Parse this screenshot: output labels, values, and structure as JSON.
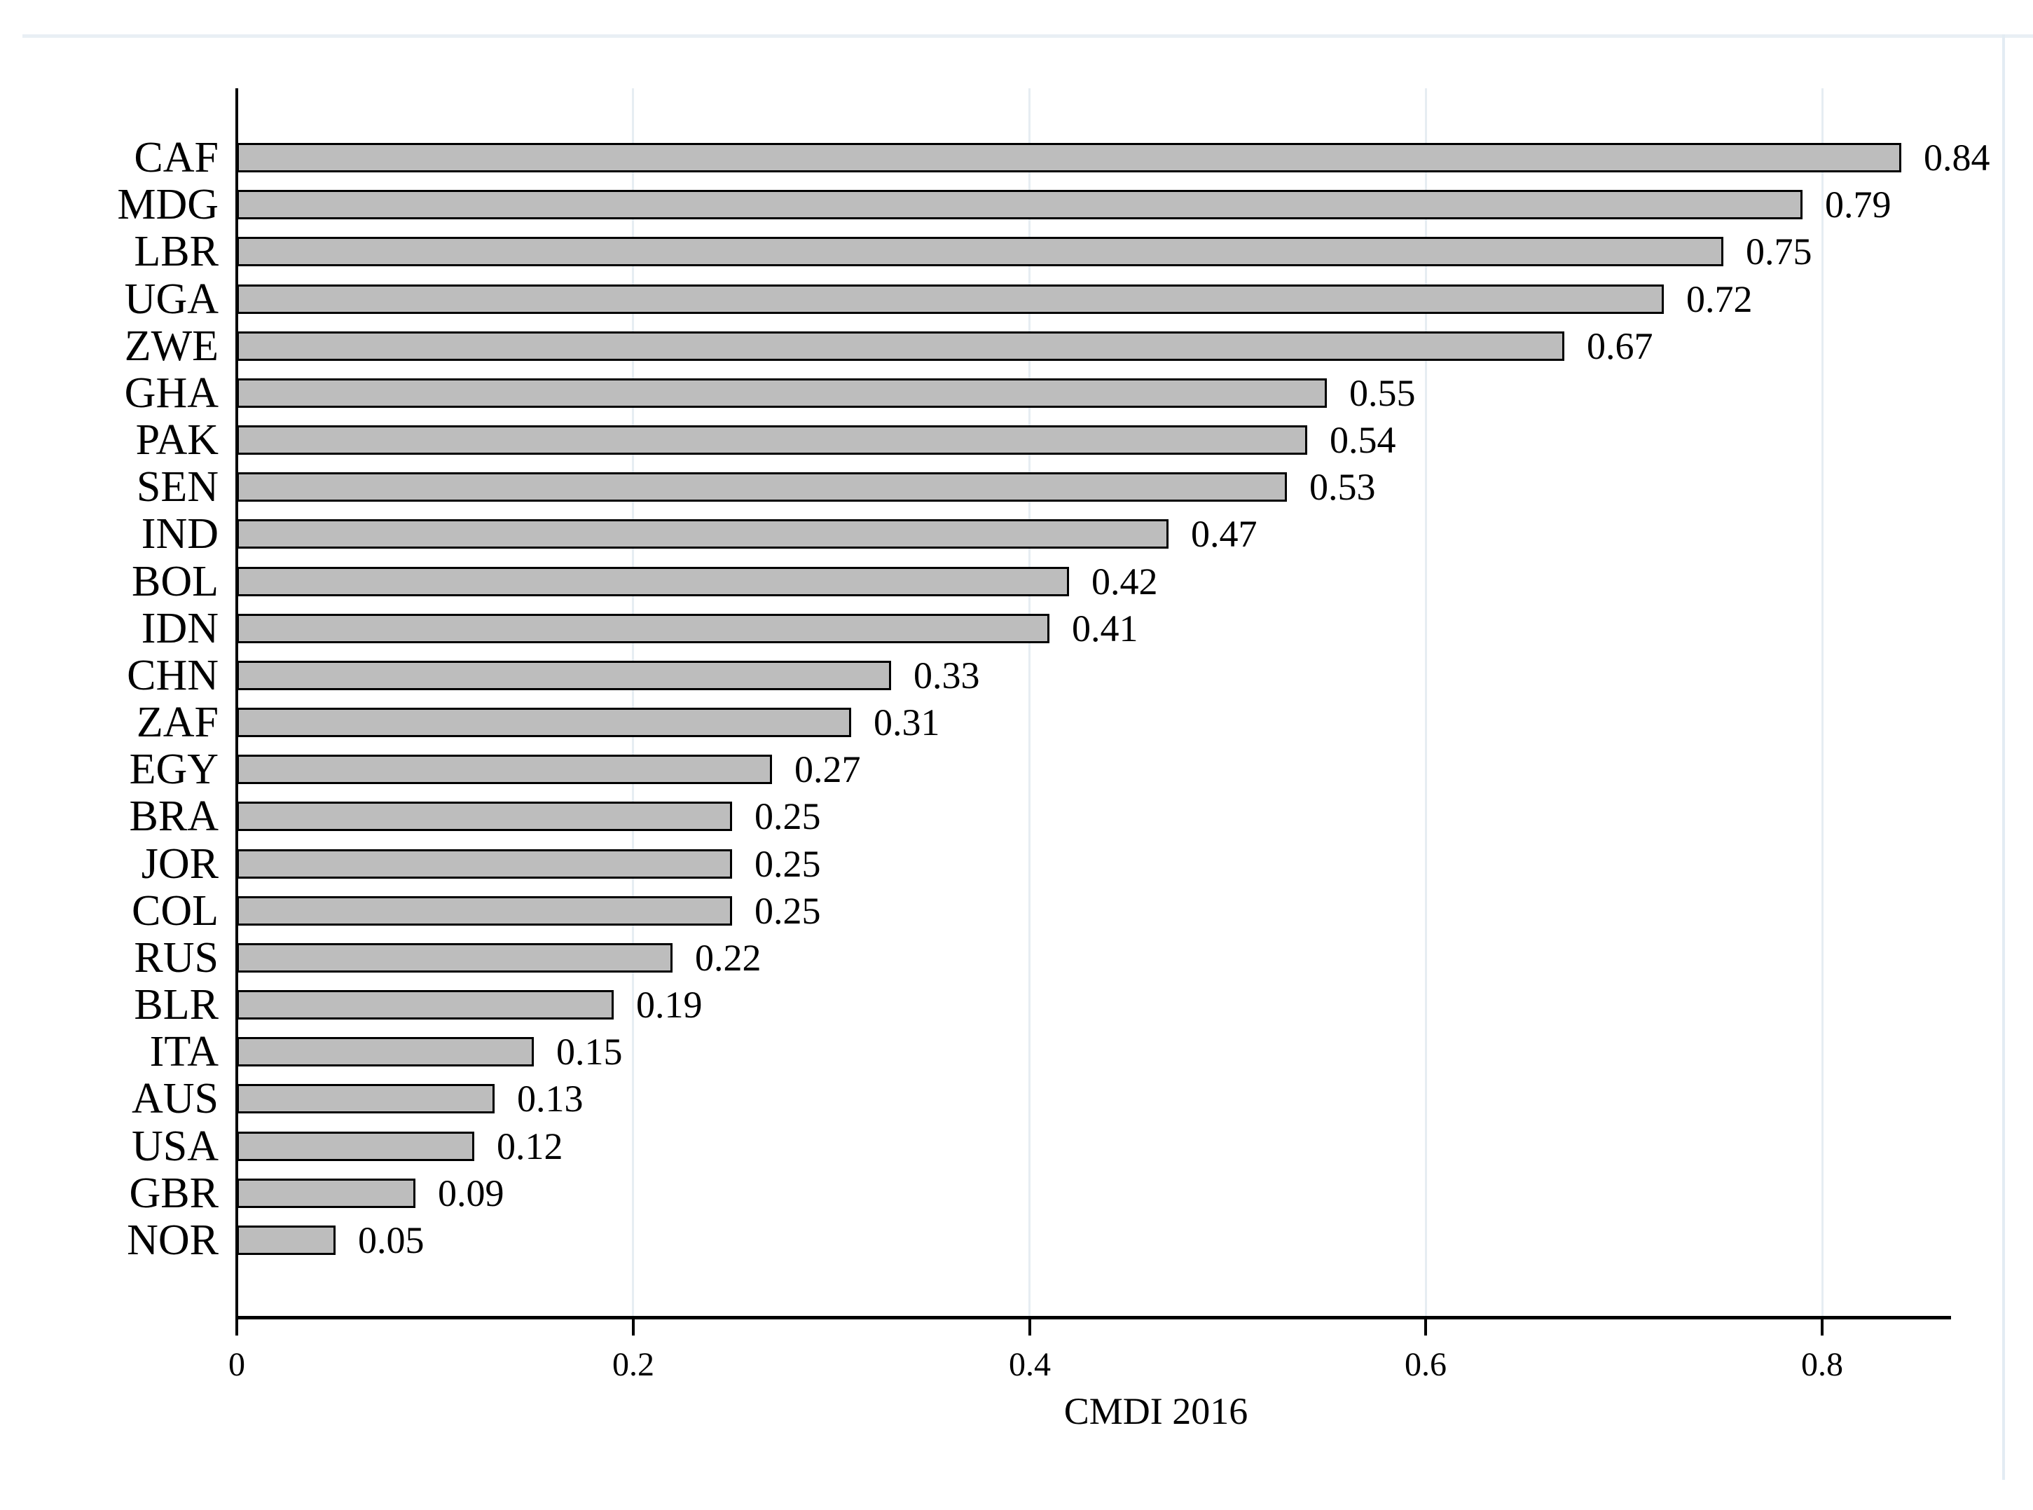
{
  "figure": {
    "top_strip_color": "#e9eff4",
    "right_border_color": "#e3ecf3"
  },
  "chart_data": {
    "type": "bar",
    "orientation": "horizontal",
    "title": "",
    "xlabel": "CMDI 2016",
    "ylabel": "",
    "categories": [
      "CAF",
      "MDG",
      "LBR",
      "UGA",
      "ZWE",
      "GHA",
      "PAK",
      "SEN",
      "IND",
      "BOL",
      "IDN",
      "CHN",
      "ZAF",
      "EGY",
      "BRA",
      "JOR",
      "COL",
      "RUS",
      "BLR",
      "ITA",
      "AUS",
      "USA",
      "GBR",
      "NOR"
    ],
    "values": [
      0.84,
      0.79,
      0.75,
      0.72,
      0.67,
      0.55,
      0.54,
      0.53,
      0.47,
      0.42,
      0.41,
      0.33,
      0.31,
      0.27,
      0.25,
      0.25,
      0.25,
      0.22,
      0.19,
      0.15,
      0.13,
      0.12,
      0.09,
      0.05
    ],
    "value_labels": [
      "0.84",
      "0.79",
      "0.75",
      "0.72",
      "0.67",
      "0.55",
      "0.54",
      "0.53",
      "0.47",
      "0.42",
      "0.41",
      "0.33",
      "0.31",
      "0.27",
      "0.25",
      "0.25",
      "0.25",
      "0.22",
      "0.19",
      "0.15",
      "0.13",
      "0.12",
      "0.09",
      "0.05"
    ],
    "x_ticks": [
      0,
      0.2,
      0.4,
      0.6,
      0.8
    ],
    "x_tick_labels": [
      "0",
      "0.2",
      "0.4",
      "0.6",
      "0.8"
    ],
    "xlim": [
      0,
      0.89
    ],
    "grid": "vertical gridlines at x ticks, very light blue",
    "legend": "none",
    "colors": {
      "bar_fill": "#bdbdbd",
      "bar_border": "#000000",
      "axis": "#000000",
      "gridline": "#e6edf2"
    }
  }
}
